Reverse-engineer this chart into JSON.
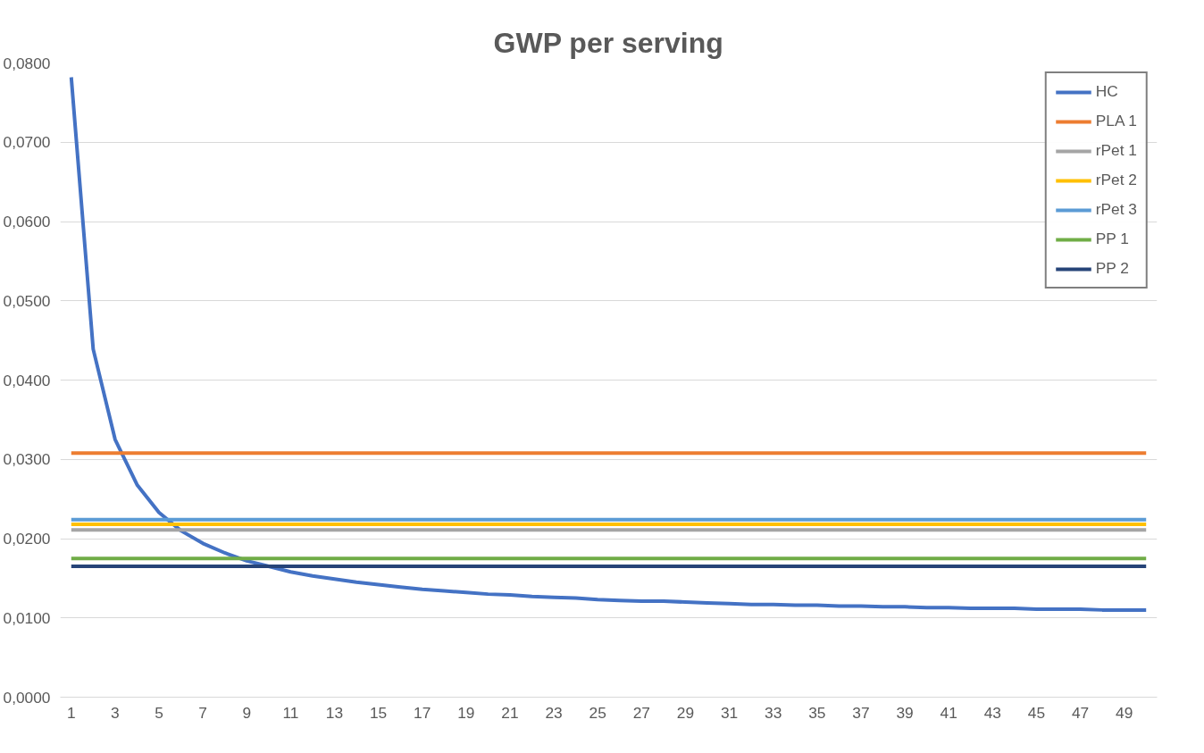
{
  "chart_data": {
    "type": "line",
    "title": "GWP per serving",
    "x": [
      1,
      2,
      3,
      4,
      5,
      6,
      7,
      8,
      9,
      10,
      11,
      12,
      13,
      14,
      15,
      16,
      17,
      18,
      19,
      20,
      21,
      22,
      23,
      24,
      25,
      26,
      27,
      28,
      29,
      30,
      31,
      32,
      33,
      34,
      35,
      36,
      37,
      38,
      39,
      40,
      41,
      42,
      43,
      44,
      45,
      46,
      47,
      48,
      49,
      50
    ],
    "xlim": [
      0.5,
      50.5
    ],
    "xticks": [
      1,
      3,
      5,
      7,
      9,
      11,
      13,
      15,
      17,
      19,
      21,
      23,
      25,
      27,
      29,
      31,
      33,
      35,
      37,
      39,
      41,
      43,
      45,
      47,
      49
    ],
    "series": [
      {
        "name": "HC",
        "color": "#4472c4",
        "values": [
          0.0782,
          0.0439,
          0.0325,
          0.0268,
          0.0233,
          0.021,
          0.0194,
          0.0182,
          0.0172,
          0.0165,
          0.0158,
          0.0153,
          0.0149,
          0.0145,
          0.0142,
          0.0139,
          0.0136,
          0.0134,
          0.0132,
          0.013,
          0.0129,
          0.0127,
          0.0126,
          0.0125,
          0.0123,
          0.0122,
          0.0121,
          0.0121,
          0.012,
          0.0119,
          0.0118,
          0.0117,
          0.0117,
          0.0116,
          0.0116,
          0.0115,
          0.0115,
          0.0114,
          0.0114,
          0.0113,
          0.0113,
          0.0112,
          0.0112,
          0.0112,
          0.0111,
          0.0111,
          0.0111,
          0.011,
          0.011,
          0.011
        ]
      },
      {
        "name": "PLA 1",
        "color": "#ed7d31",
        "values": [
          0.0308,
          0.0308,
          0.0308,
          0.0308,
          0.0308,
          0.0308,
          0.0308,
          0.0308,
          0.0308,
          0.0308,
          0.0308,
          0.0308,
          0.0308,
          0.0308,
          0.0308,
          0.0308,
          0.0308,
          0.0308,
          0.0308,
          0.0308,
          0.0308,
          0.0308,
          0.0308,
          0.0308,
          0.0308,
          0.0308,
          0.0308,
          0.0308,
          0.0308,
          0.0308,
          0.0308,
          0.0308,
          0.0308,
          0.0308,
          0.0308,
          0.0308,
          0.0308,
          0.0308,
          0.0308,
          0.0308,
          0.0308,
          0.0308,
          0.0308,
          0.0308,
          0.0308,
          0.0308,
          0.0308,
          0.0308,
          0.0308,
          0.0308
        ]
      },
      {
        "name": "rPet 1",
        "color": "#a5a5a5",
        "values": [
          0.0211,
          0.0211,
          0.0211,
          0.0211,
          0.0211,
          0.0211,
          0.0211,
          0.0211,
          0.0211,
          0.0211,
          0.0211,
          0.0211,
          0.0211,
          0.0211,
          0.0211,
          0.0211,
          0.0211,
          0.0211,
          0.0211,
          0.0211,
          0.0211,
          0.0211,
          0.0211,
          0.0211,
          0.0211,
          0.0211,
          0.0211,
          0.0211,
          0.0211,
          0.0211,
          0.0211,
          0.0211,
          0.0211,
          0.0211,
          0.0211,
          0.0211,
          0.0211,
          0.0211,
          0.0211,
          0.0211,
          0.0211,
          0.0211,
          0.0211,
          0.0211,
          0.0211,
          0.0211,
          0.0211,
          0.0211,
          0.0211,
          0.0211
        ]
      },
      {
        "name": "rPet 2",
        "color": "#ffc000",
        "values": [
          0.0218,
          0.0218,
          0.0218,
          0.0218,
          0.0218,
          0.0218,
          0.0218,
          0.0218,
          0.0218,
          0.0218,
          0.0218,
          0.0218,
          0.0218,
          0.0218,
          0.0218,
          0.0218,
          0.0218,
          0.0218,
          0.0218,
          0.0218,
          0.0218,
          0.0218,
          0.0218,
          0.0218,
          0.0218,
          0.0218,
          0.0218,
          0.0218,
          0.0218,
          0.0218,
          0.0218,
          0.0218,
          0.0218,
          0.0218,
          0.0218,
          0.0218,
          0.0218,
          0.0218,
          0.0218,
          0.0218,
          0.0218,
          0.0218,
          0.0218,
          0.0218,
          0.0218,
          0.0218,
          0.0218,
          0.0218,
          0.0218,
          0.0218
        ]
      },
      {
        "name": "rPet 3",
        "color": "#5b9bd5",
        "values": [
          0.0224,
          0.0224,
          0.0224,
          0.0224,
          0.0224,
          0.0224,
          0.0224,
          0.0224,
          0.0224,
          0.0224,
          0.0224,
          0.0224,
          0.0224,
          0.0224,
          0.0224,
          0.0224,
          0.0224,
          0.0224,
          0.0224,
          0.0224,
          0.0224,
          0.0224,
          0.0224,
          0.0224,
          0.0224,
          0.0224,
          0.0224,
          0.0224,
          0.0224,
          0.0224,
          0.0224,
          0.0224,
          0.0224,
          0.0224,
          0.0224,
          0.0224,
          0.0224,
          0.0224,
          0.0224,
          0.0224,
          0.0224,
          0.0224,
          0.0224,
          0.0224,
          0.0224,
          0.0224,
          0.0224,
          0.0224,
          0.0224,
          0.0224
        ]
      },
      {
        "name": "PP 1",
        "color": "#70ad47",
        "values": [
          0.0175,
          0.0175,
          0.0175,
          0.0175,
          0.0175,
          0.0175,
          0.0175,
          0.0175,
          0.0175,
          0.0175,
          0.0175,
          0.0175,
          0.0175,
          0.0175,
          0.0175,
          0.0175,
          0.0175,
          0.0175,
          0.0175,
          0.0175,
          0.0175,
          0.0175,
          0.0175,
          0.0175,
          0.0175,
          0.0175,
          0.0175,
          0.0175,
          0.0175,
          0.0175,
          0.0175,
          0.0175,
          0.0175,
          0.0175,
          0.0175,
          0.0175,
          0.0175,
          0.0175,
          0.0175,
          0.0175,
          0.0175,
          0.0175,
          0.0175,
          0.0175,
          0.0175,
          0.0175,
          0.0175,
          0.0175,
          0.0175,
          0.0175
        ]
      },
      {
        "name": "PP 2",
        "color": "#264478",
        "values": [
          0.0165,
          0.0165,
          0.0165,
          0.0165,
          0.0165,
          0.0165,
          0.0165,
          0.0165,
          0.0165,
          0.0165,
          0.0165,
          0.0165,
          0.0165,
          0.0165,
          0.0165,
          0.0165,
          0.0165,
          0.0165,
          0.0165,
          0.0165,
          0.0165,
          0.0165,
          0.0165,
          0.0165,
          0.0165,
          0.0165,
          0.0165,
          0.0165,
          0.0165,
          0.0165,
          0.0165,
          0.0165,
          0.0165,
          0.0165,
          0.0165,
          0.0165,
          0.0165,
          0.0165,
          0.0165,
          0.0165,
          0.0165,
          0.0165,
          0.0165,
          0.0165,
          0.0165,
          0.0165,
          0.0165,
          0.0165,
          0.0165,
          0.0165
        ]
      }
    ],
    "ylim": [
      0,
      0.08
    ],
    "yticks": [
      {
        "value": 0,
        "label": "0,0000"
      },
      {
        "value": 0.01,
        "label": "0,0100"
      },
      {
        "value": 0.02,
        "label": "0,0200"
      },
      {
        "value": 0.03,
        "label": "0,0300"
      },
      {
        "value": 0.04,
        "label": "0,0400"
      },
      {
        "value": 0.05,
        "label": "0,0500"
      },
      {
        "value": 0.06,
        "label": "0,0600"
      },
      {
        "value": 0.07,
        "label": "0,0700"
      },
      {
        "value": 0.08,
        "label": "0,0800"
      }
    ],
    "grid": "y",
    "legend": "top right",
    "marker": "none",
    "line_style": "solid"
  }
}
